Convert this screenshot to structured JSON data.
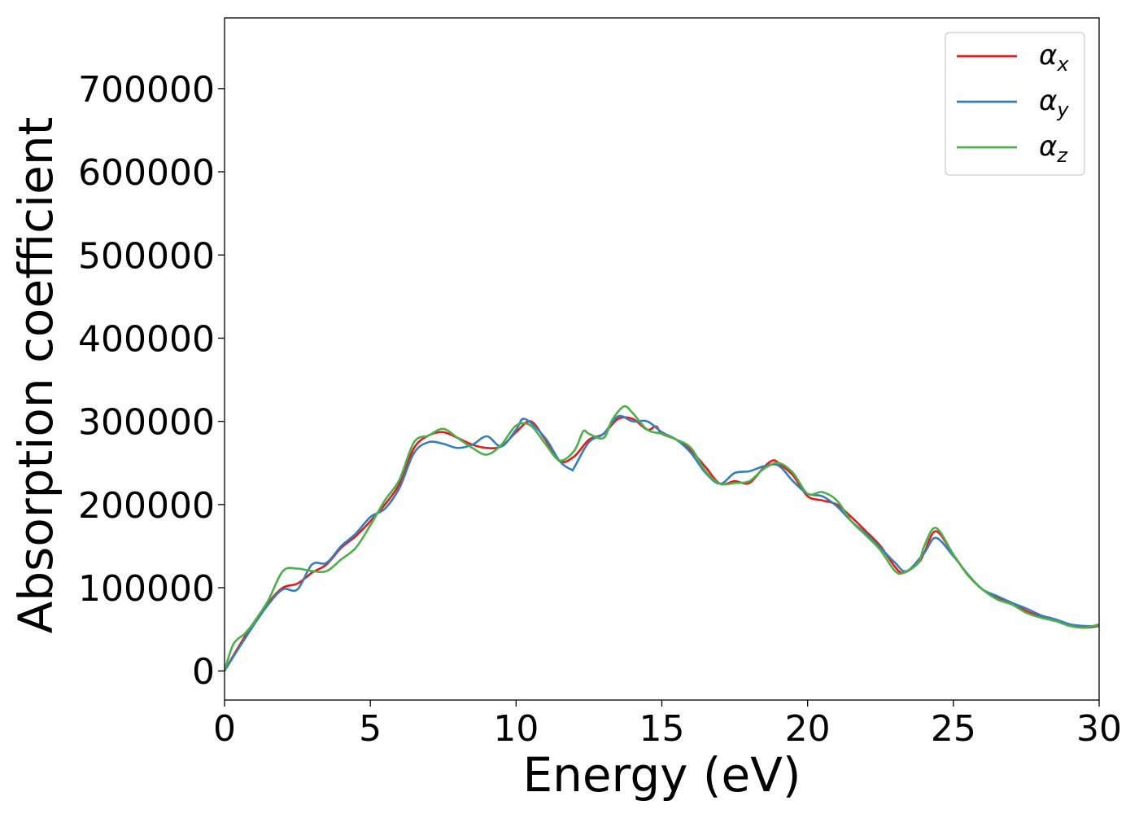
{
  "chart_data": {
    "type": "line",
    "xlabel": "Energy (eV)",
    "ylabel": "Absorption coefficient",
    "xlim": [
      0,
      30
    ],
    "ylim": [
      -35000,
      785000
    ],
    "xticks": [
      0,
      5,
      10,
      15,
      20,
      25,
      30
    ],
    "yticks": [
      0,
      100000,
      200000,
      300000,
      400000,
      500000,
      600000,
      700000
    ],
    "grid": false,
    "legend_position": "top-right",
    "series": [
      {
        "name": "α",
        "subscript": "x",
        "color": "#e41a1c",
        "points": [
          [
            0,
            0
          ],
          [
            0.5,
            30000
          ],
          [
            1,
            58000
          ],
          [
            1.5,
            82000
          ],
          [
            2,
            100000
          ],
          [
            2.5,
            105000
          ],
          [
            3,
            118000
          ],
          [
            3.5,
            128000
          ],
          [
            4,
            148000
          ],
          [
            4.5,
            162000
          ],
          [
            5,
            180000
          ],
          [
            5.5,
            200000
          ],
          [
            6,
            225000
          ],
          [
            6.5,
            268000
          ],
          [
            7,
            283000
          ],
          [
            7.5,
            287000
          ],
          [
            8,
            280000
          ],
          [
            8.5,
            272000
          ],
          [
            9,
            268000
          ],
          [
            9.5,
            270000
          ],
          [
            10,
            287000
          ],
          [
            10.5,
            300000
          ],
          [
            11,
            278000
          ],
          [
            11.5,
            252000
          ],
          [
            12,
            258000
          ],
          [
            12.5,
            278000
          ],
          [
            13,
            285000
          ],
          [
            13.5,
            303000
          ],
          [
            14,
            303000
          ],
          [
            14.5,
            290000
          ],
          [
            14.8,
            294000
          ],
          [
            15,
            285000
          ],
          [
            15.5,
            278000
          ],
          [
            16,
            265000
          ],
          [
            16.5,
            245000
          ],
          [
            17,
            225000
          ],
          [
            17.5,
            228000
          ],
          [
            18,
            226000
          ],
          [
            18.5,
            245000
          ],
          [
            18.8,
            253000
          ],
          [
            19,
            250000
          ],
          [
            19.5,
            235000
          ],
          [
            20,
            210000
          ],
          [
            20.5,
            205000
          ],
          [
            21,
            200000
          ],
          [
            21.5,
            185000
          ],
          [
            22,
            168000
          ],
          [
            22.5,
            150000
          ],
          [
            23,
            125000
          ],
          [
            23.3,
            118000
          ],
          [
            23.8,
            130000
          ],
          [
            24,
            142000
          ],
          [
            24.4,
            168000
          ],
          [
            25,
            140000
          ],
          [
            25.5,
            115000
          ],
          [
            26,
            98000
          ],
          [
            26.5,
            88000
          ],
          [
            27,
            82000
          ],
          [
            27.5,
            72000
          ],
          [
            28,
            65000
          ],
          [
            28.5,
            60000
          ],
          [
            29,
            55000
          ],
          [
            29.5,
            52000
          ],
          [
            30,
            54000
          ]
        ]
      },
      {
        "name": "α",
        "subscript": "y",
        "color": "#377eb8",
        "points": [
          [
            0,
            0
          ],
          [
            0.5,
            28000
          ],
          [
            1,
            55000
          ],
          [
            1.5,
            80000
          ],
          [
            2,
            98000
          ],
          [
            2.5,
            98000
          ],
          [
            3,
            128000
          ],
          [
            3.5,
            130000
          ],
          [
            4,
            150000
          ],
          [
            4.5,
            165000
          ],
          [
            5,
            185000
          ],
          [
            5.5,
            195000
          ],
          [
            6,
            220000
          ],
          [
            6.5,
            262000
          ],
          [
            7,
            275000
          ],
          [
            7.5,
            273000
          ],
          [
            8,
            268000
          ],
          [
            8.5,
            272000
          ],
          [
            9,
            282000
          ],
          [
            9.5,
            270000
          ],
          [
            10,
            290000
          ],
          [
            10.3,
            303000
          ],
          [
            11,
            280000
          ],
          [
            11.5,
            252000
          ],
          [
            11.9,
            242000
          ],
          [
            12,
            245000
          ],
          [
            12.5,
            275000
          ],
          [
            13,
            285000
          ],
          [
            13.5,
            306000
          ],
          [
            14,
            300000
          ],
          [
            14.5,
            300000
          ],
          [
            15,
            287000
          ],
          [
            15.5,
            278000
          ],
          [
            16,
            262000
          ],
          [
            16.5,
            238000
          ],
          [
            17,
            225000
          ],
          [
            17.5,
            238000
          ],
          [
            18,
            240000
          ],
          [
            18.5,
            246000
          ],
          [
            19,
            247000
          ],
          [
            19.5,
            228000
          ],
          [
            20,
            213000
          ],
          [
            20.5,
            210000
          ],
          [
            21,
            198000
          ],
          [
            21.5,
            180000
          ],
          [
            22,
            165000
          ],
          [
            22.5,
            148000
          ],
          [
            23,
            130000
          ],
          [
            23.4,
            120000
          ],
          [
            24,
            142000
          ],
          [
            24.4,
            160000
          ],
          [
            25,
            138000
          ],
          [
            25.5,
            116000
          ],
          [
            26,
            98000
          ],
          [
            26.5,
            90000
          ],
          [
            27,
            82000
          ],
          [
            27.5,
            75000
          ],
          [
            28,
            67000
          ],
          [
            28.5,
            62000
          ],
          [
            29,
            56000
          ],
          [
            29.5,
            54000
          ],
          [
            30,
            54000
          ]
        ]
      },
      {
        "name": "α",
        "subscript": "z",
        "color": "#4daf4a",
        "points": [
          [
            0,
            0
          ],
          [
            0.3,
            32000
          ],
          [
            0.7,
            45000
          ],
          [
            1,
            58000
          ],
          [
            1.5,
            85000
          ],
          [
            2,
            120000
          ],
          [
            2.5,
            123000
          ],
          [
            3,
            120000
          ],
          [
            3.5,
            120000
          ],
          [
            4,
            134000
          ],
          [
            4.5,
            148000
          ],
          [
            5,
            175000
          ],
          [
            5.5,
            205000
          ],
          [
            6,
            230000
          ],
          [
            6.5,
            275000
          ],
          [
            7,
            283000
          ],
          [
            7.5,
            291000
          ],
          [
            8,
            280000
          ],
          [
            8.5,
            268000
          ],
          [
            9,
            260000
          ],
          [
            9.5,
            272000
          ],
          [
            10,
            295000
          ],
          [
            10.5,
            295000
          ],
          [
            11,
            273000
          ],
          [
            11.5,
            253000
          ],
          [
            12,
            265000
          ],
          [
            12.3,
            288000
          ],
          [
            12.5,
            285000
          ],
          [
            13,
            280000
          ],
          [
            13.3,
            302000
          ],
          [
            13.7,
            318000
          ],
          [
            14,
            310000
          ],
          [
            14.5,
            290000
          ],
          [
            15,
            285000
          ],
          [
            15.5,
            278000
          ],
          [
            16,
            268000
          ],
          [
            16.5,
            240000
          ],
          [
            17,
            225000
          ],
          [
            17.5,
            226000
          ],
          [
            18,
            228000
          ],
          [
            18.5,
            243000
          ],
          [
            19,
            250000
          ],
          [
            19.5,
            238000
          ],
          [
            20,
            213000
          ],
          [
            20.5,
            215000
          ],
          [
            21,
            205000
          ],
          [
            21.5,
            180000
          ],
          [
            22,
            163000
          ],
          [
            22.5,
            145000
          ],
          [
            23,
            120000
          ],
          [
            23.3,
            118000
          ],
          [
            23.8,
            130000
          ],
          [
            24,
            150000
          ],
          [
            24.4,
            172000
          ],
          [
            25,
            140000
          ],
          [
            25.5,
            115000
          ],
          [
            26,
            98000
          ],
          [
            26.5,
            86000
          ],
          [
            27,
            80000
          ],
          [
            27.5,
            70000
          ],
          [
            28,
            64000
          ],
          [
            28.5,
            60000
          ],
          [
            29,
            54000
          ],
          [
            29.5,
            52000
          ],
          [
            30,
            56000
          ]
        ]
      }
    ]
  }
}
